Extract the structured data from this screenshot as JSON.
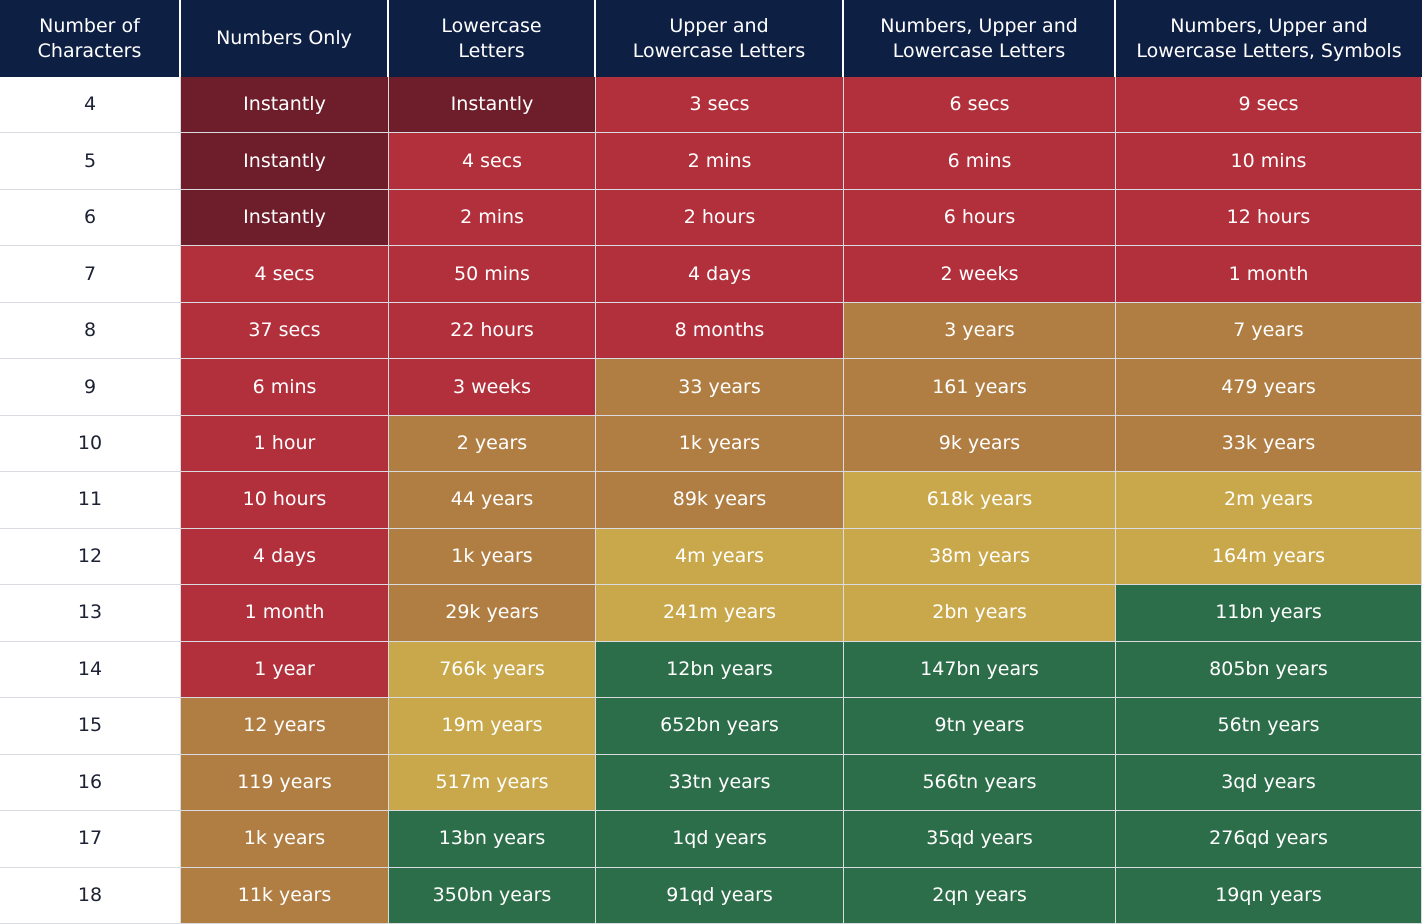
{
  "chart_data": {
    "type": "table",
    "columns": [
      "Number of\nCharacters",
      "Numbers Only",
      "Lowercase\nLetters",
      "Upper and\nLowercase Letters",
      "Numbers, Upper and\nLowercase Letters",
      "Numbers, Upper and\nLowercase Letters, Symbols"
    ],
    "rows": [
      {
        "chars": "4",
        "values": [
          "Instantly",
          "Instantly",
          "3 secs",
          "6 secs",
          "9 secs"
        ],
        "levels": [
          0,
          0,
          1,
          1,
          1
        ]
      },
      {
        "chars": "5",
        "values": [
          "Instantly",
          "4 secs",
          "2 mins",
          "6 mins",
          "10 mins"
        ],
        "levels": [
          0,
          1,
          1,
          1,
          1
        ]
      },
      {
        "chars": "6",
        "values": [
          "Instantly",
          "2 mins",
          "2 hours",
          "6 hours",
          "12 hours"
        ],
        "levels": [
          0,
          1,
          1,
          1,
          1
        ]
      },
      {
        "chars": "7",
        "values": [
          "4 secs",
          "50 mins",
          "4 days",
          "2 weeks",
          "1 month"
        ],
        "levels": [
          1,
          1,
          1,
          1,
          1
        ]
      },
      {
        "chars": "8",
        "values": [
          "37 secs",
          "22 hours",
          "8 months",
          "3 years",
          "7 years"
        ],
        "levels": [
          1,
          1,
          1,
          2,
          2
        ]
      },
      {
        "chars": "9",
        "values": [
          "6 mins",
          "3 weeks",
          "33 years",
          "161 years",
          "479 years"
        ],
        "levels": [
          1,
          1,
          2,
          2,
          2
        ]
      },
      {
        "chars": "10",
        "values": [
          "1 hour",
          "2 years",
          "1k years",
          "9k years",
          "33k years"
        ],
        "levels": [
          1,
          2,
          2,
          2,
          2
        ]
      },
      {
        "chars": "11",
        "values": [
          "10 hours",
          "44 years",
          "89k years",
          "618k years",
          "2m years"
        ],
        "levels": [
          1,
          2,
          2,
          3,
          3
        ]
      },
      {
        "chars": "12",
        "values": [
          "4 days",
          "1k years",
          "4m years",
          "38m years",
          "164m years"
        ],
        "levels": [
          1,
          2,
          3,
          3,
          3
        ]
      },
      {
        "chars": "13",
        "values": [
          "1 month",
          "29k years",
          "241m years",
          "2bn years",
          "11bn years"
        ],
        "levels": [
          1,
          2,
          3,
          3,
          4
        ]
      },
      {
        "chars": "14",
        "values": [
          "1 year",
          "766k years",
          "12bn years",
          "147bn years",
          "805bn years"
        ],
        "levels": [
          1,
          3,
          4,
          4,
          4
        ]
      },
      {
        "chars": "15",
        "values": [
          "12 years",
          "19m years",
          "652bn years",
          "9tn years",
          "56tn years"
        ],
        "levels": [
          2,
          3,
          4,
          4,
          4
        ]
      },
      {
        "chars": "16",
        "values": [
          "119 years",
          "517m years",
          "33tn years",
          "566tn years",
          "3qd years"
        ],
        "levels": [
          2,
          3,
          4,
          4,
          4
        ]
      },
      {
        "chars": "17",
        "values": [
          "1k years",
          "13bn years",
          "1qd years",
          "35qd years",
          "276qd years"
        ],
        "levels": [
          2,
          4,
          4,
          4,
          4
        ]
      },
      {
        "chars": "18",
        "values": [
          "11k years",
          "350bn years",
          "91qd years",
          "2qn years",
          "19qn years"
        ],
        "levels": [
          2,
          4,
          4,
          4,
          4
        ]
      }
    ],
    "level_colors": [
      "#6e1d2b",
      "#b1303c",
      "#b07e43",
      "#c9a84b",
      "#2d6e4a"
    ],
    "header_color": "#0e1f44"
  }
}
